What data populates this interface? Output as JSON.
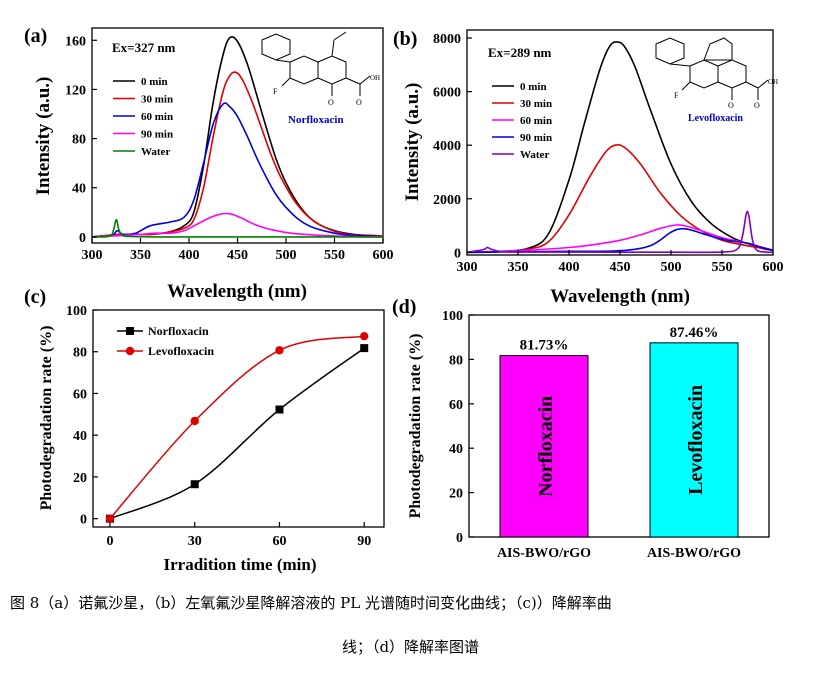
{
  "chart_data": [
    {
      "type": "line",
      "panel": "(a)",
      "annotation": "Ex=327 nm",
      "compound": "Norfloxacin",
      "xlabel": "Wavelength (nm)",
      "ylabel": "Intensity (a.u.)",
      "xlim": [
        300,
        600
      ],
      "ylim": [
        -5,
        170
      ],
      "xticks": [
        300,
        350,
        400,
        450,
        500,
        550,
        600
      ],
      "yticks": [
        0,
        40,
        80,
        120,
        160
      ],
      "legend_position": "top-left",
      "series": [
        {
          "name": "0 min",
          "color": "#000000",
          "x": [
            300,
            330,
            360,
            380,
            395,
            405,
            415,
            425,
            435,
            442,
            450,
            460,
            470,
            480,
            490,
            500,
            515,
            530,
            550,
            570,
            590,
            600
          ],
          "y": [
            0,
            2,
            2,
            4,
            9,
            20,
            58,
            110,
            148,
            162,
            159,
            141,
            115,
            88,
            63,
            44,
            24,
            12,
            5,
            2,
            1,
            0.5
          ]
        },
        {
          "name": "30 min",
          "color": "#e00000",
          "x": [
            300,
            330,
            360,
            380,
            395,
            405,
            415,
            425,
            435,
            442,
            448,
            455,
            465,
            475,
            485,
            495,
            510,
            525,
            545,
            565,
            590,
            600
          ],
          "y": [
            0,
            2,
            2,
            4,
            7,
            14,
            40,
            82,
            118,
            131,
            134,
            128,
            110,
            88,
            66,
            48,
            28,
            15,
            6,
            2,
            1,
            0.5
          ]
        },
        {
          "name": "60 min",
          "color": "#0000e0",
          "x": [
            300,
            320,
            326,
            332,
            345,
            360,
            380,
            395,
            405,
            415,
            425,
            435,
            442,
            450,
            460,
            470,
            480,
            490,
            500,
            515,
            530,
            550,
            570,
            590,
            600
          ],
          "y": [
            0,
            1,
            5,
            2,
            3,
            9,
            12,
            16,
            30,
            60,
            92,
            108,
            106,
            98,
            82,
            64,
            48,
            34,
            24,
            13,
            7,
            3,
            1,
            0.5,
            0
          ]
        },
        {
          "name": "90 min",
          "color": "#ff00ff",
          "x": [
            300,
            330,
            350,
            365,
            380,
            395,
            410,
            420,
            430,
            438,
            446,
            455,
            465,
            475,
            490,
            505,
            520,
            540,
            560,
            580,
            600
          ],
          "y": [
            0,
            1,
            2,
            3,
            3,
            5,
            11,
            15,
            18,
            19,
            18,
            15,
            11,
            8,
            5,
            3,
            2,
            1,
            0.5,
            0,
            0
          ]
        },
        {
          "name": "Water",
          "color": "#008000",
          "x": [
            300,
            318,
            322,
            325,
            328,
            332,
            340,
            360,
            380,
            400,
            450,
            500,
            550,
            600
          ],
          "y": [
            0,
            0.5,
            5,
            14,
            5,
            1,
            0.3,
            0,
            0,
            0,
            0,
            0,
            0,
            0
          ]
        }
      ]
    },
    {
      "type": "line",
      "panel": "(b)",
      "annotation": "Ex=289 nm",
      "compound": "Levofloxacin",
      "xlabel": "Wavelength (nm)",
      "ylabel": "Intensity (a.u.)",
      "xlim": [
        300,
        600
      ],
      "ylim": [
        -100,
        8300
      ],
      "xticks": [
        300,
        350,
        400,
        450,
        500,
        550,
        600
      ],
      "yticks": [
        0,
        2000,
        4000,
        6000,
        8000
      ],
      "legend_position": "top-left",
      "series": [
        {
          "name": "0 min",
          "color": "#000000",
          "x": [
            300,
            330,
            360,
            380,
            400,
            415,
            430,
            440,
            448,
            455,
            465,
            480,
            500,
            520,
            540,
            560,
            575,
            590,
            600
          ],
          "y": [
            0,
            20,
            150,
            700,
            2700,
            4800,
            6800,
            7700,
            7850,
            7650,
            6900,
            5300,
            3300,
            1900,
            1050,
            550,
            330,
            140,
            70
          ]
        },
        {
          "name": "30 min",
          "color": "#e00000",
          "x": [
            300,
            330,
            360,
            380,
            400,
            420,
            435,
            445,
            455,
            470,
            490,
            510,
            530,
            550,
            570,
            590,
            600
          ],
          "y": [
            0,
            30,
            120,
            400,
            1400,
            2800,
            3700,
            4000,
            3900,
            3300,
            2200,
            1350,
            800,
            450,
            280,
            150,
            70
          ]
        },
        {
          "name": "60 min",
          "color": "#ff00ff",
          "x": [
            300,
            350,
            400,
            430,
            450,
            470,
            490,
            505,
            515,
            530,
            550,
            570,
            590,
            600
          ],
          "y": [
            0,
            60,
            180,
            320,
            450,
            650,
            900,
            1020,
            980,
            800,
            550,
            380,
            180,
            80
          ]
        },
        {
          "name": "90 min",
          "color": "#0000e0",
          "x": [
            300,
            350,
            400,
            450,
            480,
            500,
            510,
            520,
            535,
            555,
            575,
            590,
            600
          ],
          "y": [
            0,
            20,
            40,
            60,
            250,
            750,
            880,
            830,
            650,
            450,
            340,
            170,
            80
          ]
        },
        {
          "name": "Water",
          "color": "#8000c0",
          "x": [
            300,
            316,
            320,
            325,
            340,
            400,
            500,
            550,
            565,
            570,
            575,
            580,
            585,
            600
          ],
          "y": [
            0,
            100,
            180,
            100,
            20,
            10,
            5,
            10,
            120,
            600,
            1520,
            450,
            60,
            0
          ]
        }
      ]
    },
    {
      "type": "line",
      "panel": "(c)",
      "xlabel": "Irradition time (min)",
      "ylabel": "Photodegradation rate (%)",
      "xlim": [
        -6,
        97
      ],
      "ylim": [
        -4,
        100
      ],
      "xticks": [
        0,
        30,
        60,
        90
      ],
      "yticks": [
        0,
        20,
        40,
        60,
        80,
        100
      ],
      "legend_position": "top-left",
      "series": [
        {
          "name": "Norfloxacin",
          "color": "#000000",
          "marker": "square",
          "x": [
            0,
            30,
            60,
            90
          ],
          "y": [
            0,
            16.5,
            52.3,
            81.73
          ]
        },
        {
          "name": "Levofloxacin",
          "color": "#e00000",
          "marker": "circle",
          "x": [
            0,
            30,
            60,
            90
          ],
          "y": [
            0,
            46.8,
            80.7,
            87.46
          ]
        }
      ]
    },
    {
      "type": "bar",
      "panel": "(d)",
      "ylabel": "Photodegradation rate (%)",
      "ylim": [
        0,
        100
      ],
      "yticks": [
        0,
        20,
        40,
        60,
        80,
        100
      ],
      "categories": [
        "AIS-BWO/rGO",
        "AIS-BWO/rGO"
      ],
      "values": [
        81.73,
        87.46
      ],
      "value_labels": [
        "81.73%",
        "87.46%"
      ],
      "bar_labels": [
        "Norfloxacin",
        "Levofloxacin"
      ],
      "colors": [
        "#ff00ff",
        "#00ffff"
      ]
    }
  ],
  "caption": {
    "line1": "图 8（a）诺氟沙星，（b）左氧氟沙星降解溶液的 PL 光谱随时间变化曲线；（c)）降解率曲",
    "line2": "线；（d）降解率图谱"
  }
}
